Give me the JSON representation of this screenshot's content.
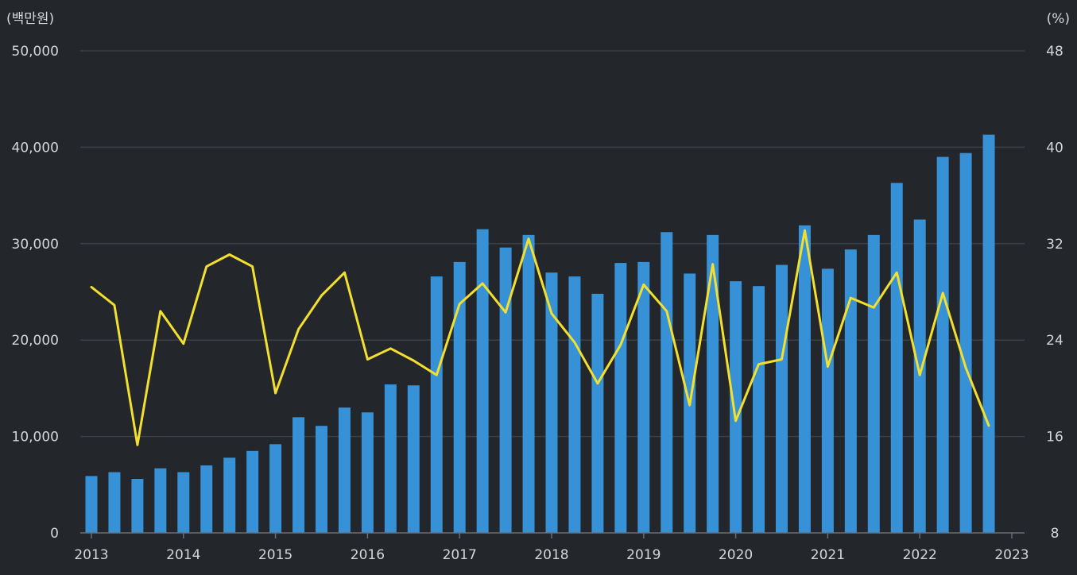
{
  "chart_data": {
    "type": "bar+line",
    "left_unit": "(백만원)",
    "right_unit": "(%)",
    "left_ticks": [
      "0",
      "10,000",
      "20,000",
      "30,000",
      "40,000",
      "50,000"
    ],
    "right_ticks": [
      "8",
      "16",
      "24",
      "32",
      "40",
      "48"
    ],
    "left_ylim": [
      0,
      50000
    ],
    "right_ylim": [
      8,
      48
    ],
    "x_labels": [
      "2013",
      "2014",
      "2015",
      "2016",
      "2017",
      "2018",
      "2019",
      "2020",
      "2021",
      "2022",
      "2023"
    ],
    "x_range": [
      2013,
      2023
    ],
    "grid": true,
    "series": [
      {
        "name": "bar",
        "axis": "left",
        "color": "#3691d6",
        "x": [
          2013.0,
          2013.25,
          2013.5,
          2013.75,
          2014.0,
          2014.25,
          2014.5,
          2014.75,
          2015.0,
          2015.25,
          2015.5,
          2015.75,
          2016.0,
          2016.25,
          2016.5,
          2016.75,
          2017.0,
          2017.25,
          2017.5,
          2017.75,
          2018.0,
          2018.25,
          2018.5,
          2018.75,
          2019.0,
          2019.25,
          2019.5,
          2019.75,
          2020.0,
          2020.25,
          2020.5,
          2020.75,
          2021.0,
          2021.25,
          2021.5,
          2021.75,
          2022.0,
          2022.25,
          2022.5,
          2022.75
        ],
        "values": [
          5900,
          6300,
          5600,
          6700,
          6300,
          7000,
          7800,
          8500,
          9200,
          12000,
          11100,
          13000,
          12500,
          15400,
          15300,
          26600,
          28100,
          31500,
          29600,
          30900,
          27000,
          26600,
          24800,
          28000,
          28100,
          31200,
          26900,
          30900,
          26100,
          25600,
          27800,
          31900,
          27400,
          29400,
          30900,
          36300,
          32500,
          39000,
          39400,
          41300
        ]
      },
      {
        "name": "line",
        "axis": "right",
        "color": "#f2df2e",
        "x": [
          2013.0,
          2013.25,
          2013.5,
          2013.75,
          2014.0,
          2014.25,
          2014.5,
          2014.75,
          2015.0,
          2015.25,
          2015.5,
          2015.75,
          2016.0,
          2016.25,
          2016.5,
          2016.75,
          2017.0,
          2017.25,
          2017.5,
          2017.75,
          2018.0,
          2018.25,
          2018.5,
          2018.75,
          2019.0,
          2019.25,
          2019.5,
          2019.75,
          2020.0,
          2020.25,
          2020.5,
          2020.75,
          2021.0,
          2021.25,
          2021.5,
          2021.75,
          2022.0,
          2022.25,
          2022.5,
          2022.75
        ],
        "values": [
          28.4,
          26.9,
          15.3,
          26.4,
          23.7,
          30.1,
          31.1,
          30.1,
          19.6,
          24.9,
          27.7,
          29.6,
          22.4,
          23.3,
          22.3,
          21.1,
          27.0,
          28.7,
          26.3,
          32.4,
          26.2,
          23.8,
          20.4,
          23.6,
          28.6,
          26.4,
          18.6,
          30.3,
          17.3,
          22.0,
          22.4,
          33.1,
          21.8,
          27.5,
          26.7,
          29.6,
          21.1,
          27.9,
          21.7,
          16.9
        ]
      }
    ]
  }
}
